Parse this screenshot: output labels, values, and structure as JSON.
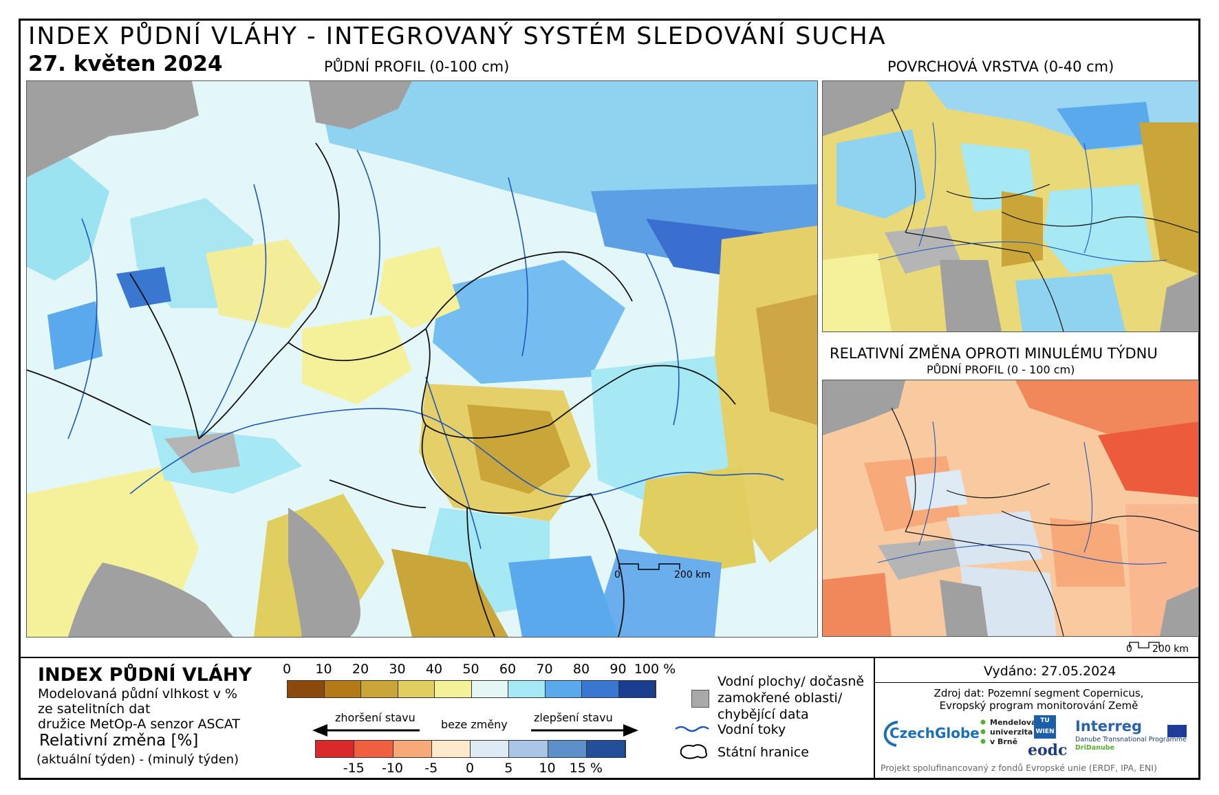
{
  "header": {
    "title": "INDEX PŮDNÍ VLÁHY - INTEGROVANÝ SYSTÉM SLEDOVÁNÍ SUCHA",
    "date": "27. květen 2024"
  },
  "maps": {
    "main_title": "PŮDNÍ PROFIL (0-100 cm)",
    "top_right_title": "POVRCHOVÁ VRSTVA (0-40 cm)",
    "bottom_right_title": "RELATIVNÍ ZMĚNA OPROTI MINULÉMU TÝDNU",
    "bottom_right_subtitle": "PŮDNÍ PROFIL (0 - 100 cm)",
    "scale_main": {
      "zero": "0",
      "end": "200 km"
    },
    "scale_small": {
      "zero": "0",
      "end": "200 km"
    }
  },
  "legend": {
    "title": "INDEX PŮDNÍ VLÁHY",
    "line1": "Modelovaná půdní vlhkost v %",
    "line2": "ze satelitních dat",
    "line3": "družice MetOp-A senzor ASCAT",
    "rel_title": "Relativní změna [%]",
    "rel_sub": "(aktuální týden) - (minulý týden)",
    "moisture_ticks": [
      "0",
      "10",
      "20",
      "30",
      "40",
      "50",
      "60",
      "70",
      "80",
      "90",
      "100 %"
    ],
    "moisture_colors": [
      "#8b4a0b",
      "#b47a1a",
      "#c9a53a",
      "#e0cf5e",
      "#f5f19a",
      "#e4f7f5",
      "#a6e8f3",
      "#5aa9ec",
      "#3a77d1",
      "#1b3d8f"
    ],
    "change_ticks": [
      "-15",
      "-10",
      "-5",
      "0",
      "5",
      "10",
      "15 %"
    ],
    "change_colors": [
      "#d9292a",
      "#f0603f",
      "#f7a97a",
      "#fde9cc",
      "#deeaf4",
      "#a9c6e6",
      "#5d8fcb",
      "#234f9a"
    ],
    "arrow_worse": "zhoršení stavu",
    "arrow_none": "beze změny",
    "arrow_better": "zlepšení stavu",
    "water_label_1": "Vodní plochy/ dočasně",
    "water_label_2": "zamokřené oblasti/",
    "water_label_3": "chybějící data",
    "rivers_label": "Vodní toky",
    "borders_label": "Státní hranice"
  },
  "info": {
    "issued": "Vydáno: 27.05.2024",
    "source_1": "Zdroj dat: Pozemní segment Copernicus,",
    "source_2": "Evropský program monitorování Země",
    "logo_czechglobe": "CzechGlobe",
    "logo_mendelu_1": "Mendelova",
    "logo_mendelu_2": "univerzita",
    "logo_mendelu_3": "v Brně",
    "logo_tu": "TU WIEN",
    "logo_eodc": "eodc",
    "logo_interreg": "Interreg",
    "logo_interreg_sub1": "Danube Transnational Programme",
    "logo_interreg_sub2": "DriDanube",
    "project": "Projekt spolufinancovaný z fondů Evropské unie (ERDF, IPA, ENI)"
  }
}
